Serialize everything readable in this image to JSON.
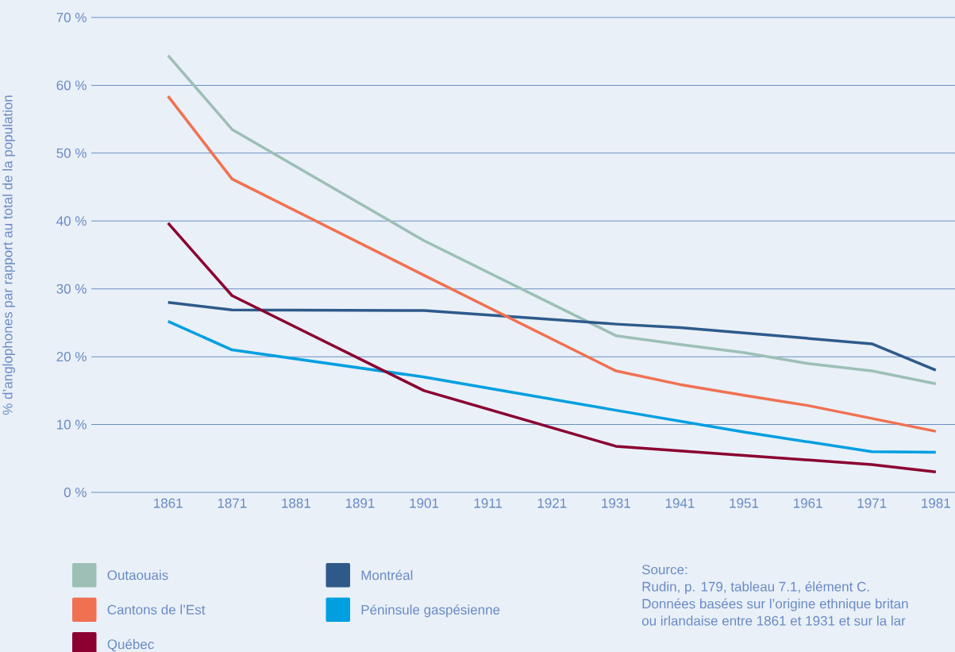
{
  "chart_data": {
    "type": "line",
    "ylabel": "% d’anglophones par rapport au total de la population",
    "xlim": [
      1849,
      1984
    ],
    "xticks": [
      1861,
      1871,
      1881,
      1891,
      1901,
      1911,
      1921,
      1931,
      1941,
      1951,
      1961,
      1971,
      1981
    ],
    "ylim": [
      0,
      70
    ],
    "yticks": [
      {
        "value": 0,
        "label": "0 %"
      },
      {
        "value": 10,
        "label": "10 %"
      },
      {
        "value": 20,
        "label": "20 %"
      },
      {
        "value": 30,
        "label": "30 %"
      },
      {
        "value": 40,
        "label": "40 %"
      },
      {
        "value": 50,
        "label": "50 %"
      },
      {
        "value": 60,
        "label": "60 %"
      },
      {
        "value": 70,
        "label": "70 %"
      }
    ],
    "grid": "y",
    "legend": "bottom left",
    "marker": "none",
    "line_style": "solid",
    "series": [
      {
        "name": "Outaouais",
        "color": "#9dbfb6",
        "x": [
          1861,
          1871,
          1901,
          1931,
          1941,
          1951,
          1961,
          1971,
          1981
        ],
        "values": [
          64.4,
          53.5,
          37.1,
          23.1,
          21.8,
          20.6,
          19.0,
          17.9,
          16.0
        ]
      },
      {
        "name": "Montréal",
        "color": "#2e5a8a",
        "x": [
          1861,
          1871,
          1901,
          1921,
          1931,
          1941,
          1971,
          1981
        ],
        "values": [
          28.0,
          26.9,
          26.8,
          25.5,
          24.8,
          24.3,
          21.9,
          18.0
        ]
      },
      {
        "name": "Cantons de l’Est",
        "color": "#f07152",
        "x": [
          1861,
          1871,
          1901,
          1931,
          1941,
          1951,
          1961,
          1971,
          1981
        ],
        "values": [
          58.4,
          46.2,
          32.0,
          17.9,
          15.9,
          14.3,
          12.8,
          10.9,
          9.0
        ]
      },
      {
        "name": "Péninsule gaspésienne",
        "color": "#009fe0",
        "x": [
          1861,
          1871,
          1901,
          1931,
          1951,
          1971,
          1981
        ],
        "values": [
          25.2,
          21.0,
          17.0,
          12.1,
          8.9,
          6.0,
          5.9
        ]
      },
      {
        "name": "Québec",
        "color": "#8b0030",
        "x": [
          1861,
          1871,
          1901,
          1931,
          1971,
          1981
        ],
        "values": [
          39.7,
          29.0,
          15.0,
          6.8,
          4.1,
          3.0
        ]
      }
    ],
    "annotations": [
      "Source:",
      "Rudin, p. 179, tableau 7.1, élément C.",
      "Données basées sur l’origine ethnique britan",
      "ou irlandaise entre 1861 et 1931 et sur la lar"
    ]
  }
}
